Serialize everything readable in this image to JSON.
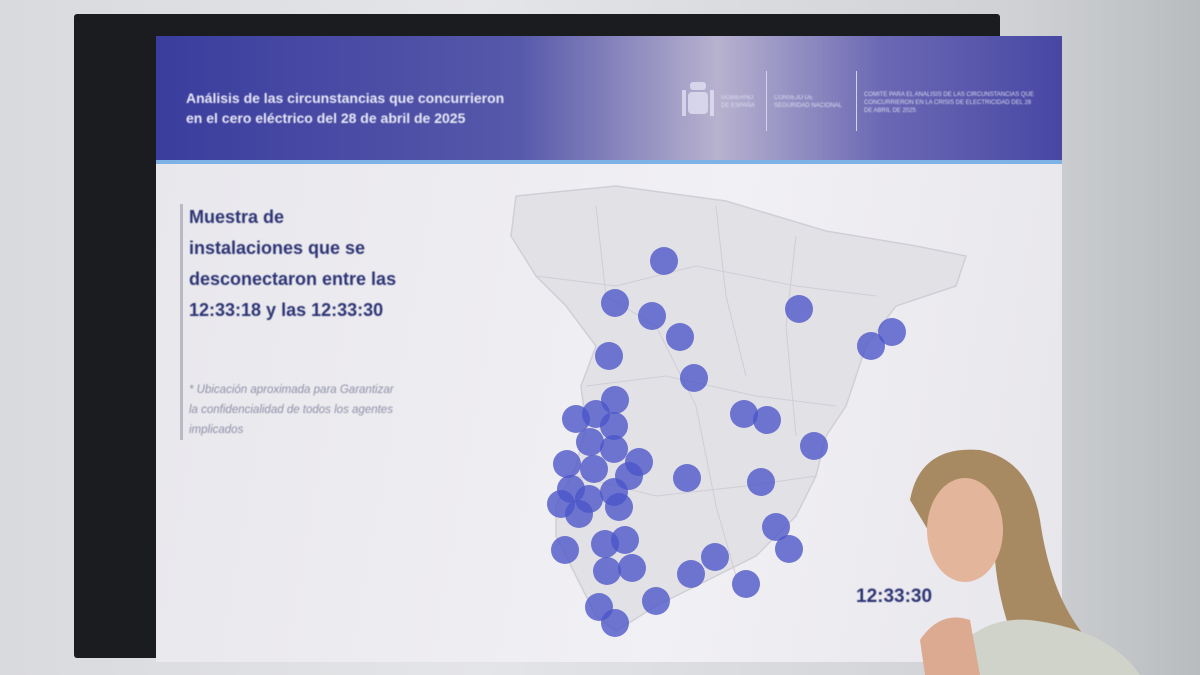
{
  "slide": {
    "title_line1": "Análisis de las circunstancias que concurrieron",
    "title_line2": "en el cero eléctrico del 28 de abril de 2025",
    "logo_text": [
      "GOBIERNO DE ESPAÑA",
      "CONSEJO DE SEGURIDAD NACIONAL",
      "COMITÉ PARA EL ANÁLISIS DE LAS CIRCUNSTANCIAS QUE CONCURRIERON EN LA CRISIS DE ELECTRICIDAD DEL 28 DE ABRIL DE 2025"
    ],
    "heading": "Muestra de instalaciones que se desconectaron entre las 12:33:18 y las 12:33:30",
    "note": "* Ubicación aproximada para Garantizar la confidencialidad de todos los agentes implicados",
    "clock": "12:33:30",
    "colors": {
      "header": "#3b3d9e",
      "dot": "#4a55c8",
      "heading": "#2d3474"
    }
  }
}
